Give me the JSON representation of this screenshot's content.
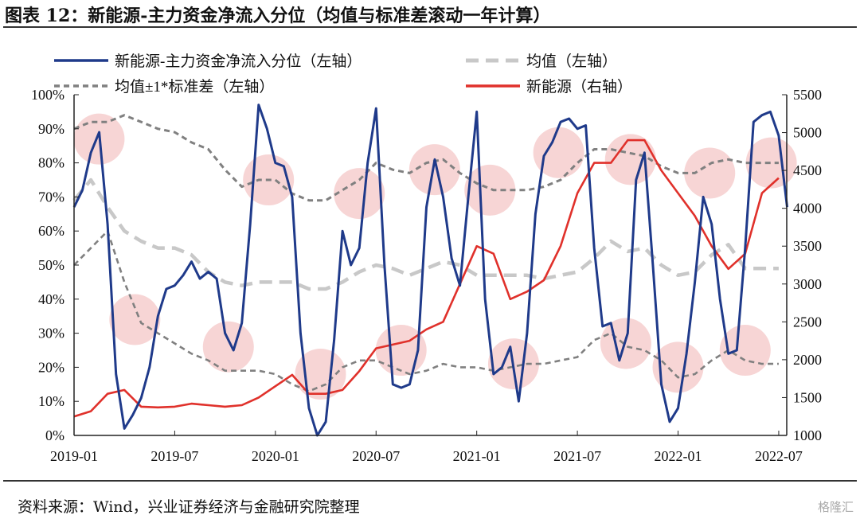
{
  "title": "图表 12：新能源-主力资金净流入分位（均值与标准差滚动一年计算）",
  "source": "资料来源：Wind，兴业证券经济与金融研究院整理",
  "watermark": "格隆汇",
  "chart_data": {
    "type": "line",
    "title": "图表 12：新能源-主力资金净流入分位（均值与标准差滚动一年计算）",
    "x_ticks": [
      "2019-01",
      "2019-07",
      "2020-01",
      "2020-07",
      "2021-01",
      "2021-07",
      "2022-01",
      "2022-07"
    ],
    "y_left": {
      "range": [
        0,
        100
      ],
      "unit": "%",
      "ticks": [
        "0%",
        "10%",
        "20%",
        "30%",
        "40%",
        "50%",
        "60%",
        "70%",
        "80%",
        "90%",
        "100%"
      ]
    },
    "y_right": {
      "range": [
        1000,
        5500
      ],
      "ticks": [
        "1000",
        "1500",
        "2000",
        "2500",
        "3000",
        "3500",
        "4000",
        "4500",
        "5000",
        "5500"
      ]
    },
    "grid": false,
    "legend_placement": "top",
    "legend": [
      {
        "label": "新能源-主力资金净流入分位（左轴）",
        "color": "#1f3a8a",
        "style": "solid"
      },
      {
        "label": "均值（左轴）",
        "color": "#c8c8c8",
        "style": "dashed"
      },
      {
        "label": "均值±1*标准差（左轴）",
        "color": "#808080",
        "style": "dotted"
      },
      {
        "label": "新能源（右轴）",
        "color": "#e0312b",
        "style": "solid"
      }
    ],
    "series": [
      {
        "name": "新能源-主力资金净流入分位（左轴）",
        "axis": "left",
        "color": "#1f3a8a",
        "sampling": "semi-monthly from 2019-01-01",
        "values": [
          67,
          72,
          83,
          89,
          62,
          18,
          2,
          6,
          11,
          20,
          35,
          43,
          44,
          47,
          51,
          46,
          48,
          46,
          30,
          25,
          33,
          62,
          97,
          90,
          80,
          79,
          70,
          30,
          8,
          0,
          4,
          28,
          60,
          50,
          55,
          80,
          96,
          50,
          15,
          14,
          15,
          25,
          67,
          81,
          70,
          52,
          44,
          70,
          95,
          40,
          18,
          20,
          26,
          10,
          30,
          65,
          82,
          86,
          92,
          93,
          90,
          91,
          55,
          32,
          33,
          22,
          30,
          75,
          83,
          50,
          15,
          4,
          8,
          24,
          45,
          70,
          62,
          40,
          24,
          25,
          55,
          92,
          94,
          95,
          88,
          67
        ]
      },
      {
        "name": "均值（左轴）",
        "axis": "left",
        "color": "#c8c8c8",
        "sampling": "monthly from 2019-01",
        "values": [
          69,
          75,
          67,
          60,
          57,
          55,
          55,
          53,
          48,
          45,
          44,
          45,
          45,
          45,
          43,
          43,
          45,
          48,
          50,
          49,
          47,
          49,
          51,
          50,
          47,
          47,
          47,
          47,
          46,
          47,
          48,
          52,
          57,
          54,
          55,
          50,
          47,
          48,
          53,
          56,
          49,
          49,
          49
        ]
      },
      {
        "name": "均值+1*标准差（左轴）",
        "axis": "left",
        "color": "#808080",
        "sampling": "monthly from 2019-01",
        "values": [
          90,
          92,
          92,
          94,
          92,
          90,
          89,
          86,
          84,
          78,
          73,
          75,
          75,
          71,
          69,
          69,
          72,
          75,
          80,
          78,
          77,
          80,
          81,
          77,
          74,
          72,
          72,
          72,
          73,
          75,
          80,
          84,
          84,
          83,
          82,
          79,
          77,
          77,
          80,
          81,
          80,
          80,
          80
        ]
      },
      {
        "name": "均值-1*标准差（左轴）",
        "axis": "left",
        "color": "#808080",
        "sampling": "monthly from 2019-01",
        "values": [
          50,
          55,
          60,
          45,
          33,
          30,
          27,
          24,
          22,
          19,
          19,
          19,
          18,
          15,
          13,
          15,
          20,
          22,
          22,
          20,
          18,
          19,
          21,
          20,
          20,
          19,
          20,
          21,
          21,
          22,
          23,
          28,
          30,
          26,
          25,
          22,
          17,
          18,
          22,
          25,
          22,
          21,
          21
        ]
      },
      {
        "name": "新能源（右轴）",
        "axis": "right",
        "color": "#e0312b",
        "sampling": "monthly from 2019-01",
        "values": [
          1250,
          1320,
          1550,
          1600,
          1380,
          1370,
          1380,
          1420,
          1400,
          1380,
          1400,
          1500,
          1650,
          1800,
          1550,
          1550,
          1600,
          1850,
          2150,
          2200,
          2250,
          2400,
          2500,
          3000,
          3500,
          3400,
          2800,
          2900,
          3050,
          3500,
          4200,
          4600,
          4600,
          4900,
          4900,
          4500,
          4200,
          3900,
          3500,
          3200,
          3400,
          4200,
          4400
        ]
      }
    ],
    "highlights": {
      "color": "#f4c7c7",
      "points": [
        {
          "date": "2019-02-16",
          "value": 87
        },
        {
          "date": "2019-04-20",
          "value": 34
        },
        {
          "date": "2019-10-07",
          "value": 26
        },
        {
          "date": "2019-12-19",
          "value": 75
        },
        {
          "date": "2020-03-22",
          "value": 18
        },
        {
          "date": "2020-06-01",
          "value": 71
        },
        {
          "date": "2020-08-16",
          "value": 25
        },
        {
          "date": "2020-10-16",
          "value": 78
        },
        {
          "date": "2021-01-25",
          "value": 72
        },
        {
          "date": "2021-03-07",
          "value": 21
        },
        {
          "date": "2021-05-28",
          "value": 83
        },
        {
          "date": "2021-09-28",
          "value": 27
        },
        {
          "date": "2021-10-06",
          "value": 81
        },
        {
          "date": "2022-01-01",
          "value": 20
        },
        {
          "date": "2022-02-28",
          "value": 77
        },
        {
          "date": "2022-05-01",
          "value": 25
        },
        {
          "date": "2022-06-18",
          "value": 80
        }
      ]
    }
  }
}
